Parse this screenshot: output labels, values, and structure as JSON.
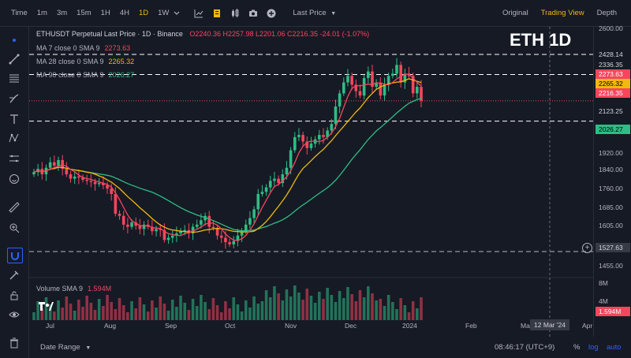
{
  "toolbar": {
    "intervals": [
      "Time",
      "1m",
      "3m",
      "15m",
      "1H",
      "4H",
      "1D",
      "1W"
    ],
    "active_interval": "1D",
    "price_mode": "Last Price",
    "views": [
      "Original",
      "Trading View",
      "Depth"
    ],
    "active_view": "Trading View"
  },
  "header": {
    "title": "ETHUSDT Perpetual Last Price · 1D · Binance",
    "ohlc": "O2240.36  H2257.98  L2201.06  C2216.35  -24.01 (-1.07%)",
    "overlay_title": "ETH 1D"
  },
  "indicators": {
    "ma7": {
      "label": "MA 7 close 0 SMA 9",
      "value": "2273.63",
      "color": "#f6465d"
    },
    "ma28": {
      "label": "MA 28 close 0 SMA 9",
      "value": "2265.32",
      "color": "#f0b90b"
    },
    "ma90": {
      "label": "MA 90 close 0 SMA 9",
      "value": "2026.27",
      "color": "#2ebd85"
    },
    "volume": {
      "label": "Volume SMA 9",
      "value": "1.594M"
    }
  },
  "price_axis": {
    "labels": [
      "2600.00",
      "1920.00",
      "1840.00",
      "1760.00",
      "1685.00",
      "1605.00",
      "1455.00"
    ],
    "tags": {
      "t2428": "2428.14",
      "t2336": "2336.35",
      "t2273": "2273.63",
      "t2265": "2265.32",
      "t2216": "2216.35",
      "t2123": "2123.25",
      "t2026": "2026.27",
      "t1527": "1527.63"
    },
    "volume_labels": [
      "8M",
      "4M"
    ],
    "volume_tag": "1.594M"
  },
  "time_axis": {
    "labels": [
      "Jul",
      "Aug",
      "Sep",
      "Oct",
      "Nov",
      "Dec",
      "2024",
      "Feb",
      "Ma",
      "Apr"
    ],
    "crosshair_date": "12 Mar '24"
  },
  "bottom": {
    "date_range": "Date Range",
    "clock": "08:46:17 (UTC+9)",
    "percent": "%",
    "log": "log",
    "auto": "auto"
  },
  "colors": {
    "up": "#2ebd85",
    "down": "#f6465d",
    "ma28": "#f0b90b",
    "accent": "#f0b90b",
    "link": "#2962ff"
  },
  "icons": [
    "indicators-icon",
    "templates-icon",
    "candles-icon",
    "camera-icon",
    "add-icon",
    "crosshair-icon",
    "trendline-icon",
    "fib-icon",
    "brush-icon",
    "text-icon",
    "pattern-icon",
    "measure-icon",
    "smile-icon",
    "ruler-icon",
    "zoom-icon",
    "magnet-icon",
    "lock-draw-icon",
    "lock-icon",
    "eye-icon",
    "trash-icon"
  ],
  "chart_data": {
    "type": "candlestick",
    "title": "ETHUSDT Perpetual Last Price · 1D · Binance",
    "close_series": [
      1890,
      1905,
      1880,
      1910,
      1935,
      1920,
      1945,
      1905,
      1880,
      1860,
      1870,
      1865,
      1855,
      1850,
      1845,
      1835,
      1840,
      1830,
      1815,
      1790,
      1700,
      1690,
      1650,
      1640,
      1660,
      1645,
      1630,
      1650,
      1640,
      1620,
      1630,
      1625,
      1580,
      1590,
      1600,
      1610,
      1620,
      1625,
      1610,
      1640,
      1650,
      1670,
      1690,
      1640,
      1635,
      1600,
      1590,
      1570,
      1560,
      1575,
      1600,
      1620,
      1650,
      1680,
      1720,
      1790,
      1800,
      1820,
      1850,
      1860,
      1840,
      1880,
      1910,
      1990,
      2050,
      2060,
      2030,
      2000,
      2020,
      2040,
      2060,
      2050,
      2080,
      2110,
      2190,
      2250,
      2300,
      2330,
      2290,
      2260,
      2240,
      2320,
      2350,
      2280,
      2300,
      2240,
      2290,
      2330,
      2340,
      2380,
      2300,
      2340,
      2330,
      2250,
      2280,
      2216
    ],
    "ma_series": [
      {
        "name": "MA 7",
        "last": 2273.63
      },
      {
        "name": "MA 28",
        "last": 2265.32
      },
      {
        "name": "MA 90",
        "last": 2026.27
      }
    ],
    "volume_last": "1.594M",
    "x_labels": [
      "Jul",
      "Aug",
      "Sep",
      "Oct",
      "Nov",
      "Dec",
      "2024",
      "Feb",
      "Ma",
      "Apr"
    ]
  }
}
